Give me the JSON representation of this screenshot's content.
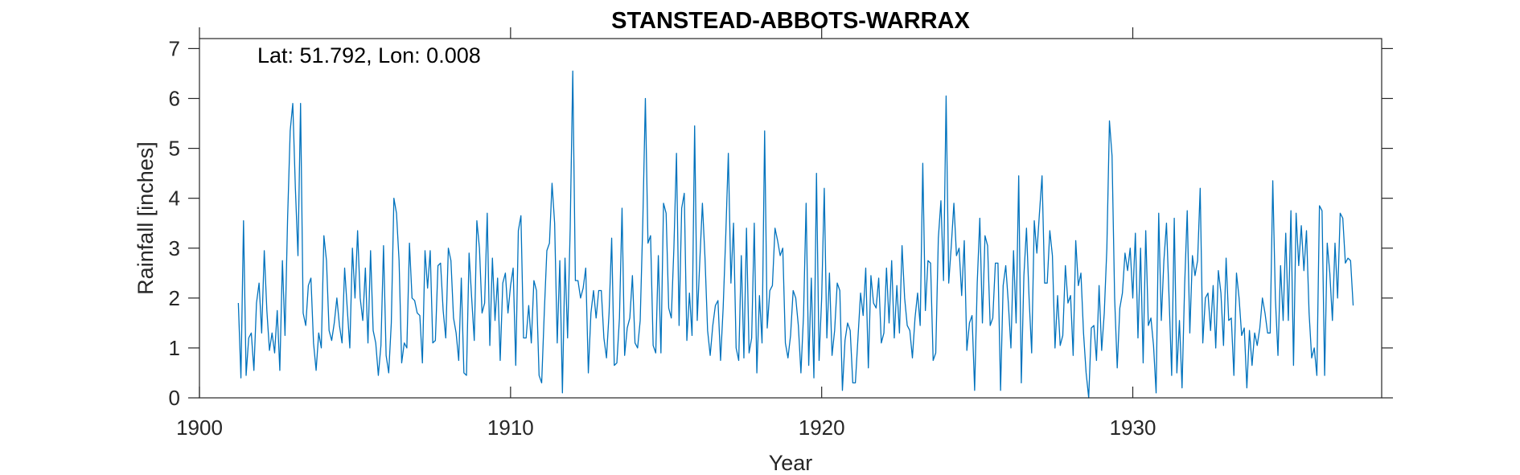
{
  "chart_data": {
    "type": "line",
    "title": "STANSTEAD-ABBOTS-WARRAX",
    "xlabel": "Year",
    "ylabel": "Rainfall [inches]",
    "annotation": "Lat: 51.792, Lon: 0.008",
    "xlim": [
      1900,
      1938
    ],
    "ylim": [
      0,
      7.2
    ],
    "xticks": [
      1900,
      1910,
      1920,
      1930
    ],
    "yticks": [
      0,
      1,
      2,
      3,
      4,
      5,
      6,
      7
    ],
    "grid": false,
    "line_color": "#0072BD",
    "x_start": 1901.25,
    "x_step": 0.0833333,
    "series": [
      {
        "values": [
          1.9,
          0.4,
          3.55,
          0.45,
          1.2,
          1.3,
          0.55,
          1.9,
          2.3,
          1.3,
          2.95,
          1.75,
          0.95,
          1.3,
          0.9,
          1.75,
          0.55,
          2.75,
          1.25,
          3.6,
          5.35,
          5.9,
          4.2,
          2.85,
          5.9,
          1.7,
          1.45,
          2.25,
          2.4,
          1.1,
          0.55,
          1.3,
          1.0,
          3.25,
          2.75,
          1.35,
          1.15,
          1.5,
          2.0,
          1.45,
          1.1,
          2.6,
          1.8,
          1.0,
          3.0,
          2.0,
          3.35,
          2.0,
          1.55,
          2.6,
          1.1,
          2.95,
          1.35,
          1.1,
          0.45,
          1.05,
          3.05,
          0.85,
          0.5,
          1.5,
          4.0,
          3.7,
          2.75,
          0.7,
          1.1,
          1.0,
          3.1,
          2.0,
          1.95,
          1.7,
          1.65,
          0.7,
          2.95,
          2.2,
          2.95,
          1.1,
          1.15,
          2.65,
          2.7,
          1.75,
          1.2,
          3.0,
          2.75,
          1.6,
          1.3,
          0.75,
          2.4,
          0.5,
          0.45,
          2.9,
          2.0,
          1.15,
          3.55,
          3.0,
          1.7,
          1.9,
          3.7,
          1.05,
          2.8,
          1.55,
          2.4,
          0.75,
          2.3,
          2.5,
          1.7,
          2.25,
          2.6,
          0.65,
          3.35,
          3.65,
          1.2,
          1.2,
          1.85,
          1.1,
          2.35,
          2.15,
          0.45,
          0.3,
          1.7,
          2.95,
          3.1,
          4.3,
          3.5,
          1.1,
          2.75,
          0.1,
          2.8,
          1.2,
          3.4,
          6.55,
          2.35,
          2.35,
          2.0,
          2.2,
          2.6,
          0.5,
          1.7,
          2.15,
          1.6,
          2.15,
          2.15,
          1.2,
          0.8,
          1.7,
          3.2,
          0.65,
          0.7,
          1.6,
          3.8,
          0.85,
          1.4,
          1.6,
          2.45,
          1.1,
          1.0,
          1.55,
          3.5,
          6.0,
          3.1,
          3.25,
          1.05,
          0.9,
          2.85,
          0.9,
          3.9,
          3.7,
          1.8,
          1.6,
          3.0,
          4.9,
          1.45,
          3.8,
          4.1,
          1.15,
          2.1,
          1.25,
          5.45,
          1.55,
          2.75,
          3.9,
          2.8,
          1.35,
          0.85,
          1.45,
          1.85,
          1.95,
          0.75,
          1.8,
          3.25,
          4.9,
          2.3,
          3.5,
          1.0,
          0.75,
          2.85,
          0.8,
          3.4,
          0.9,
          1.2,
          3.5,
          0.5,
          2.05,
          1.1,
          5.35,
          1.4,
          2.15,
          2.25,
          3.4,
          3.15,
          2.85,
          3.0,
          1.1,
          0.8,
          1.25,
          2.15,
          2.0,
          1.45,
          0.5,
          1.65,
          3.9,
          0.65,
          2.4,
          0.4,
          4.5,
          0.75,
          2.0,
          4.2,
          1.2,
          2.5,
          0.85,
          1.35,
          2.3,
          2.15,
          0.15,
          1.15,
          1.5,
          1.35,
          0.3,
          0.3,
          1.2,
          2.1,
          1.65,
          2.6,
          0.6,
          2.45,
          1.9,
          1.8,
          2.4,
          1.1,
          1.3,
          2.6,
          1.5,
          2.75,
          1.2,
          2.25,
          1.3,
          3.05,
          2.0,
          1.45,
          1.35,
          0.8,
          1.6,
          2.1,
          1.45,
          4.7,
          1.75,
          2.75,
          2.7,
          0.75,
          0.9,
          3.2,
          3.95,
          2.35,
          6.05,
          2.3,
          3.05,
          3.9,
          2.85,
          3.0,
          2.05,
          3.15,
          0.95,
          1.5,
          1.65,
          0.15,
          2.3,
          3.6,
          1.5,
          3.25,
          3.05,
          1.45,
          1.6,
          2.7,
          2.7,
          0.15,
          2.25,
          2.65,
          1.9,
          1.0,
          2.95,
          1.5,
          4.45,
          0.3,
          2.45,
          3.4,
          2.0,
          0.9,
          3.55,
          2.9,
          3.7,
          4.45,
          2.3,
          2.3,
          3.35,
          2.85,
          1.0,
          2.05,
          1.05,
          1.25,
          2.65,
          1.9,
          2.05,
          0.85,
          3.15,
          2.25,
          2.5,
          1.3,
          0.5,
          0.0,
          1.4,
          1.45,
          0.75,
          2.25,
          0.95,
          1.7,
          3.0,
          5.55,
          4.85,
          2.0,
          0.6,
          1.8,
          2.1,
          2.9,
          2.55,
          3.0,
          2.0,
          3.3,
          1.2,
          3.0,
          0.7,
          3.35,
          1.45,
          1.6,
          1.05,
          0.1,
          3.7,
          1.55,
          2.75,
          3.5,
          2.0,
          0.45,
          3.6,
          0.5,
          1.55,
          0.2,
          2.25,
          3.75,
          1.3,
          2.85,
          2.45,
          2.75,
          4.2,
          1.1,
          2.0,
          2.1,
          1.35,
          2.25,
          1.0,
          2.55,
          2.1,
          1.05,
          2.8,
          1.55,
          1.6,
          0.45,
          2.5,
          2.0,
          1.25,
          1.4,
          0.2,
          1.35,
          0.65,
          1.3,
          1.05,
          1.4,
          2.0,
          1.7,
          1.3,
          1.3,
          4.35,
          2.0,
          0.85,
          2.65,
          1.55,
          3.3,
          1.55,
          3.75,
          0.65,
          3.7,
          2.65,
          3.45,
          2.55,
          3.35,
          1.7,
          0.8,
          1.0,
          0.45,
          3.85,
          3.75,
          0.45,
          3.1,
          2.5,
          1.55,
          3.1,
          2.0,
          3.7,
          3.6,
          2.7,
          2.8,
          2.75,
          1.85
        ]
      }
    ]
  }
}
